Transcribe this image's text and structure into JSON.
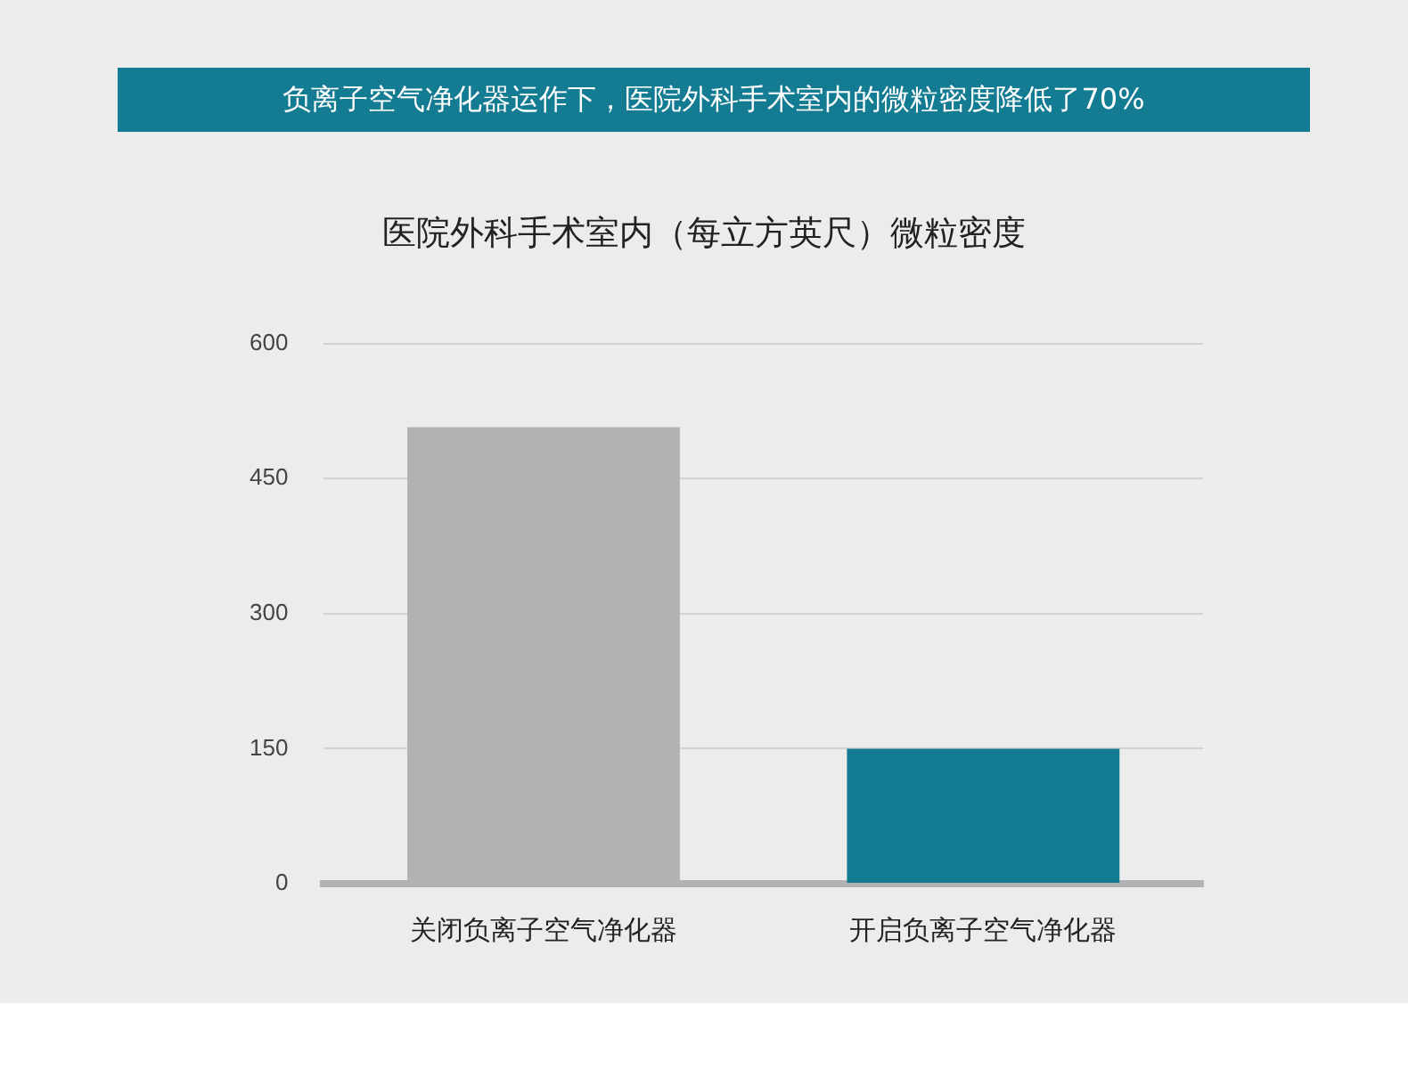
{
  "chart_data": {
    "type": "bar",
    "title": "负离子空气净化器运作下，医院外科手术室内的微粒密度降低了70%",
    "subtitle": "医院外科手术室内（每立方英尺）微粒密度",
    "categories": [
      "关闭负离子空气净化器",
      "开启负离子空气净化器"
    ],
    "values": [
      507,
      150
    ],
    "colors": [
      "#b1b2b4",
      "#137b92"
    ],
    "ylim": [
      0,
      600
    ],
    "yticks": [
      0,
      150,
      300,
      450,
      600
    ],
    "grid": "y",
    "legend": false
  }
}
